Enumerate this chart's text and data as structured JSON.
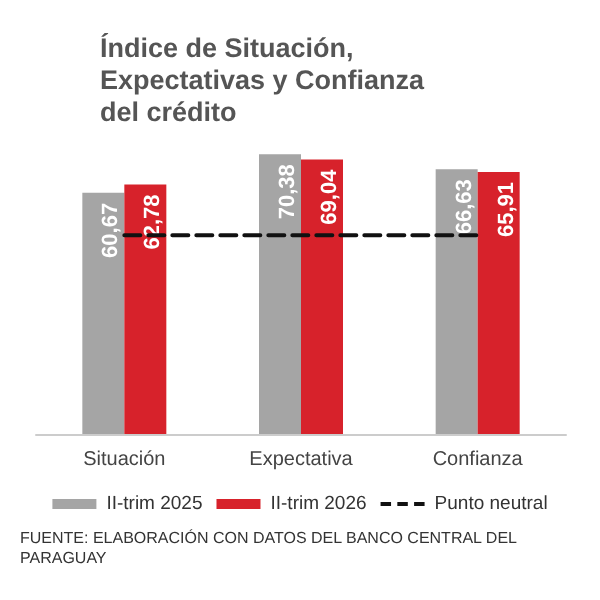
{
  "chart_data": {
    "type": "bar",
    "title": "Índice de Situación, Expectativas y Confianza del crédito",
    "categories": [
      "Situación",
      "Expectativa",
      "Confianza"
    ],
    "series": [
      {
        "name": "II-trim 2025",
        "color": "#a5a5a5",
        "values": [
          60.67,
          70.38,
          66.63
        ],
        "value_labels": [
          "60,67",
          "70,38",
          "66,63"
        ]
      },
      {
        "name": "II-trim 2026",
        "color": "#d7222b",
        "values": [
          62.78,
          69.04,
          65.91
        ],
        "value_labels": [
          "62,78",
          "69,04",
          "65,91"
        ]
      },
      {
        "name": "Punto neutral",
        "type": "line",
        "color": "#111111",
        "values": [
          50,
          50,
          50
        ],
        "line_style": "dashed",
        "marker": "none"
      }
    ],
    "legend": "bottom",
    "annotations": [
      "FUENTE: ELABORACIÓN CON DATOS DEL BANCO CENTRAL DEL PARAGUAY"
    ]
  }
}
